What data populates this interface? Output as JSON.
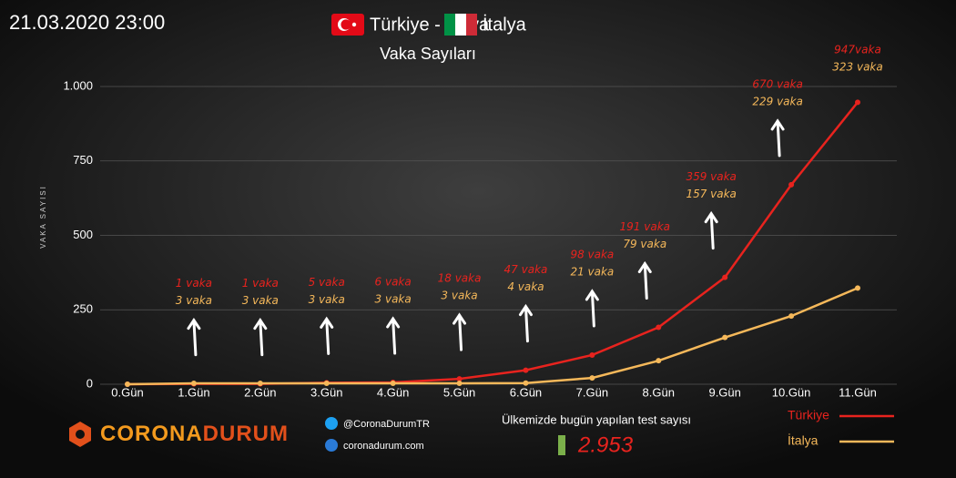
{
  "timestamp": "21.03.2020 23:00",
  "chart_data": {
    "type": "line",
    "title": "Türkiye - İtalya",
    "subtitle": "Vaka Sayıları",
    "y_label": "VAKA SAYISI",
    "categories": [
      "0.Gün",
      "1.Gün",
      "2.Gün",
      "3.Gün",
      "4.Gün",
      "5.Gün",
      "6.Gün",
      "7.Gün",
      "8.Gün",
      "9.Gün",
      "10.Gün",
      "11.Gün"
    ],
    "series": [
      {
        "name": "Türkiye",
        "color": "#e8231e",
        "values": [
          0,
          1,
          1,
          5,
          6,
          18,
          47,
          98,
          191,
          359,
          670,
          947
        ],
        "value_labels": [
          null,
          "1 vaka",
          "1 vaka",
          "5 vaka",
          "6 vaka",
          "18 vaka",
          "47 vaka",
          "98 vaka",
          "191 vaka",
          "359 vaka",
          "670 vaka",
          "947vaka"
        ]
      },
      {
        "name": "İtalya",
        "color": "#f5b85a",
        "values": [
          0,
          3,
          3,
          3,
          3,
          3,
          4,
          21,
          79,
          157,
          229,
          323
        ],
        "value_labels": [
          null,
          "3 vaka",
          "3 vaka",
          "3 vaka",
          "3 vaka",
          "3 vaka",
          "4 vaka",
          "21 vaka",
          "79 vaka",
          "157 vaka",
          "229 vaka",
          "323 vaka"
        ]
      }
    ],
    "ylim": [
      0,
      1000
    ],
    "yticks": [
      0,
      250,
      500,
      750,
      {
        "value": 1000,
        "label": "1.000"
      }
    ],
    "grid": true,
    "legend": "bottom-right"
  },
  "footer": {
    "brand": {
      "first": "CORONA",
      "second": "DURUM"
    },
    "twitter": "@CoronaDurumTR",
    "website": "coronadurum.com",
    "test_caption": "Ülkemizde bugün yapılan test sayısı",
    "test_count": "2.953"
  }
}
